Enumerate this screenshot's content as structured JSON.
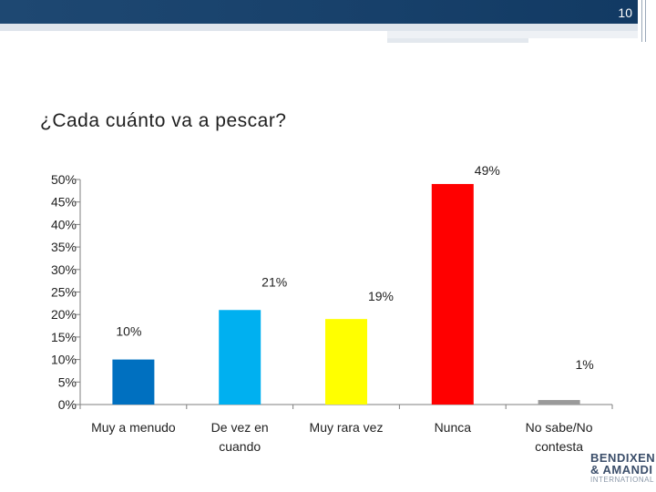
{
  "header": {
    "page_number": "10"
  },
  "slide": {
    "title": "¿Cada cuánto va a pescar?"
  },
  "logo": {
    "line1": "BENDIXEN",
    "line2": "& AMANDI",
    "line3": "INTERNATIONAL"
  },
  "chart_data": {
    "type": "bar",
    "title": "¿Cada cuánto va a pescar?",
    "categories": [
      "Muy a menudo",
      "De vez en cuando",
      "Muy rara vez",
      "Nunca",
      "No sabe/No contesta"
    ],
    "category_lines": [
      [
        "Muy a menudo"
      ],
      [
        "De vez en",
        "cuando"
      ],
      [
        "Muy rara vez"
      ],
      [
        "Nunca"
      ],
      [
        "No sabe/No",
        "contesta"
      ]
    ],
    "values": [
      10,
      21,
      19,
      49,
      1
    ],
    "data_labels": [
      "10%",
      "21%",
      "19%",
      "49%",
      "1%"
    ],
    "colors": [
      "#0070c0",
      "#00b0f0",
      "#ffff00",
      "#ff0000",
      "#9a9a9a"
    ],
    "ylim": [
      0,
      50
    ],
    "yticks": [
      0,
      5,
      10,
      15,
      20,
      25,
      30,
      35,
      40,
      45,
      50
    ],
    "ytick_labels": [
      "0%",
      "5%",
      "10%",
      "15%",
      "20%",
      "25%",
      "30%",
      "35%",
      "40%",
      "45%",
      "50%"
    ],
    "xlabel": "",
    "ylabel": "",
    "grid": false
  }
}
